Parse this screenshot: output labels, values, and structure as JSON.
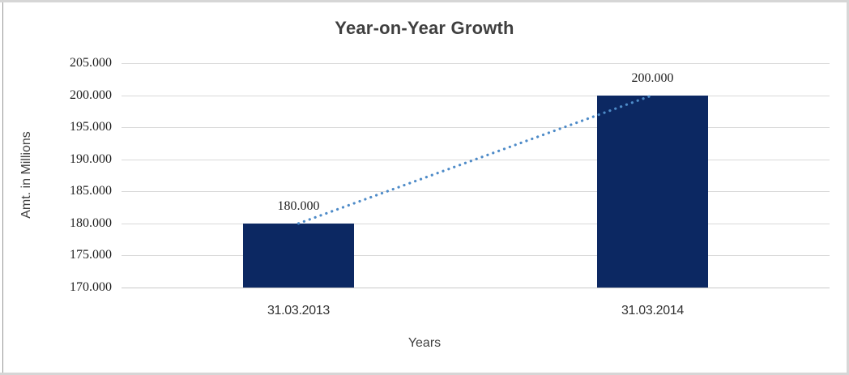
{
  "chart": {
    "title": "Year-on-Year Growth",
    "x_axis_title": "Years",
    "y_axis_title": "Amt. in Millions",
    "colors": {
      "bar_fill": "#0c2862",
      "trend_line": "#4e8bc8",
      "gridline": "#d9d9d9",
      "axis_line": "#c9c9c9",
      "title_text": "#3f3f3f",
      "number_text": "#1f1f1f"
    }
  },
  "chart_data": {
    "type": "bar",
    "title": "Year-on-Year Growth",
    "xlabel": "Years",
    "ylabel": "Amt. in Millions",
    "categories": [
      "31.03.2013",
      "31.03.2014"
    ],
    "values": [
      180000,
      200000
    ],
    "value_labels": [
      "180.000",
      "200.000"
    ],
    "series": [
      {
        "name": "Amount",
        "type": "bar",
        "values": [
          180000,
          200000
        ]
      },
      {
        "name": "Trend",
        "type": "dotted-line",
        "values": [
          180000,
          200000
        ]
      }
    ],
    "ylim": [
      170000,
      205000
    ],
    "y_tick_step": 5000,
    "y_tick_labels": [
      "170.000",
      "175.000",
      "180.000",
      "185.000",
      "190.000",
      "195.000",
      "200.000",
      "205.000"
    ],
    "grid": true,
    "legend": false
  }
}
